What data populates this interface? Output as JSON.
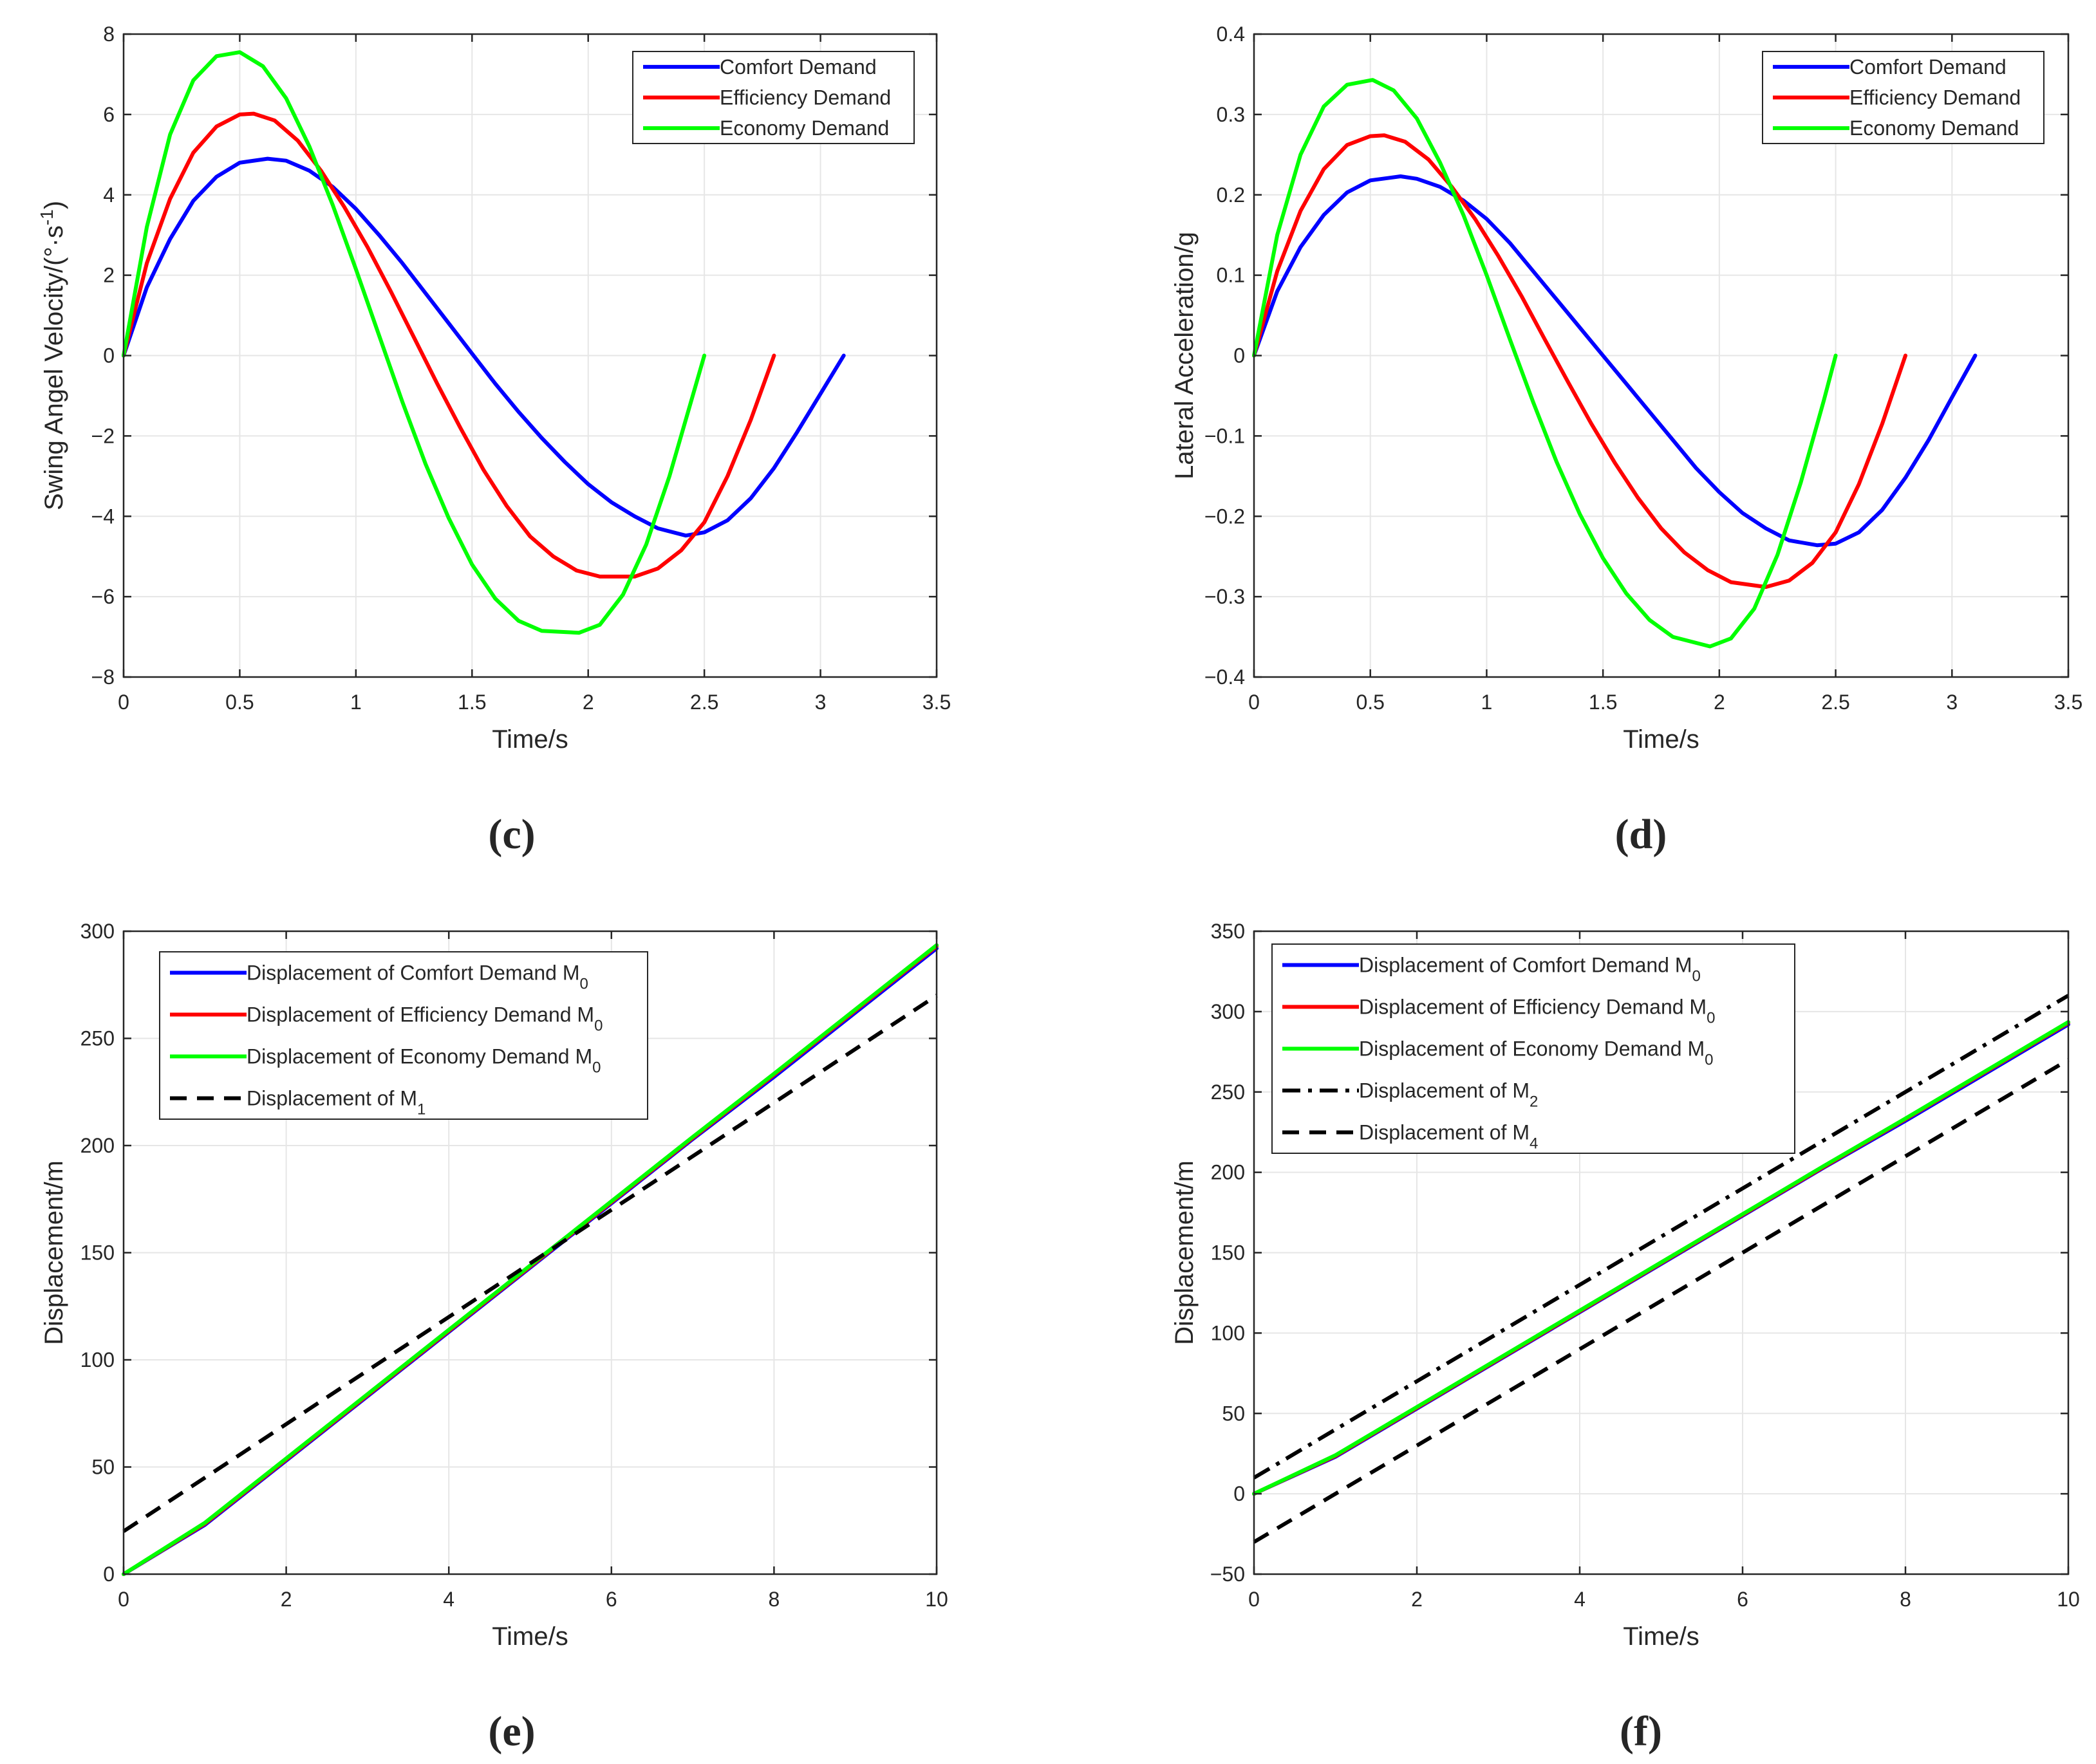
{
  "colors": {
    "comfort": "#0000ff",
    "efficiency": "#ff0000",
    "economy": "#00ff00",
    "reference": "#000000",
    "grid": "#e6e6e6",
    "axis": "#262626"
  },
  "chart_data": [
    {
      "panel": "(c)",
      "type": "line",
      "title": "",
      "xlabel": "Time/s",
      "ylabel": "Swing Angel Velocity/(°·s",
      "ylabel_sup": "-1",
      "ylabel_tail": ")",
      "xlim": [
        0,
        3.5
      ],
      "ylim": [
        -8,
        8
      ],
      "xticks": [
        0,
        0.5,
        1,
        1.5,
        2,
        2.5,
        3,
        3.5
      ],
      "xtick_labels": [
        "0",
        "0.5",
        "1",
        "1.5",
        "2",
        "2.5",
        "3",
        "3.5"
      ],
      "yticks": [
        -8,
        -6,
        -4,
        -2,
        0,
        2,
        4,
        6,
        8
      ],
      "ytick_labels": [
        "−8",
        "−6",
        "−4",
        "−2",
        "0",
        "2",
        "4",
        "6",
        "8"
      ],
      "grid": true,
      "legend_position": "top-right",
      "series": [
        {
          "name": "Comfort Demand",
          "color_key": "comfort",
          "dash": "solid",
          "x": [
            0,
            0.1,
            0.2,
            0.3,
            0.4,
            0.5,
            0.62,
            0.7,
            0.8,
            0.9,
            1.0,
            1.1,
            1.2,
            1.3,
            1.4,
            1.5,
            1.6,
            1.7,
            1.8,
            1.9,
            2.0,
            2.1,
            2.2,
            2.3,
            2.42,
            2.5,
            2.6,
            2.7,
            2.8,
            2.9,
            3.0,
            3.1
          ],
          "y": [
            0,
            1.7,
            2.9,
            3.85,
            4.45,
            4.8,
            4.9,
            4.85,
            4.6,
            4.2,
            3.65,
            3.0,
            2.3,
            1.55,
            0.8,
            0.05,
            -0.7,
            -1.4,
            -2.05,
            -2.65,
            -3.2,
            -3.65,
            -4.0,
            -4.3,
            -4.48,
            -4.4,
            -4.1,
            -3.55,
            -2.8,
            -1.9,
            -0.95,
            0
          ]
        },
        {
          "name": "Efficiency Demand",
          "color_key": "efficiency",
          "dash": "solid",
          "x": [
            0,
            0.1,
            0.2,
            0.3,
            0.4,
            0.5,
            0.56,
            0.65,
            0.75,
            0.85,
            0.95,
            1.05,
            1.15,
            1.25,
            1.35,
            1.45,
            1.55,
            1.65,
            1.75,
            1.85,
            1.95,
            2.05,
            2.2,
            2.3,
            2.4,
            2.5,
            2.6,
            2.7,
            2.8
          ],
          "y": [
            0,
            2.3,
            3.9,
            5.05,
            5.7,
            6.0,
            6.02,
            5.85,
            5.35,
            4.6,
            3.7,
            2.7,
            1.6,
            0.45,
            -0.7,
            -1.8,
            -2.85,
            -3.75,
            -4.5,
            -5.0,
            -5.35,
            -5.5,
            -5.5,
            -5.3,
            -4.85,
            -4.15,
            -3.0,
            -1.6,
            0
          ]
        },
        {
          "name": "Economy Demand",
          "color_key": "economy",
          "dash": "solid",
          "x": [
            0,
            0.1,
            0.2,
            0.3,
            0.4,
            0.5,
            0.6,
            0.7,
            0.8,
            0.9,
            1.0,
            1.1,
            1.2,
            1.3,
            1.4,
            1.5,
            1.6,
            1.7,
            1.8,
            1.96,
            2.05,
            2.15,
            2.25,
            2.35,
            2.45,
            2.5
          ],
          "y": [
            0,
            3.2,
            5.5,
            6.85,
            7.45,
            7.55,
            7.2,
            6.4,
            5.2,
            3.75,
            2.15,
            0.5,
            -1.15,
            -2.7,
            -4.05,
            -5.2,
            -6.05,
            -6.6,
            -6.85,
            -6.9,
            -6.7,
            -5.95,
            -4.7,
            -3.0,
            -1.0,
            0
          ]
        }
      ]
    },
    {
      "panel": "(d)",
      "type": "line",
      "title": "",
      "xlabel": "Time/s",
      "ylabel": "Lateral Acceleration/g",
      "xlim": [
        0,
        3.5
      ],
      "ylim": [
        -0.4,
        0.4
      ],
      "xticks": [
        0,
        0.5,
        1,
        1.5,
        2,
        2.5,
        3,
        3.5
      ],
      "xtick_labels": [
        "0",
        "0.5",
        "1",
        "1.5",
        "2",
        "2.5",
        "3",
        "3.5"
      ],
      "yticks": [
        -0.4,
        -0.3,
        -0.2,
        -0.1,
        0,
        0.1,
        0.2,
        0.3,
        0.4
      ],
      "ytick_labels": [
        "−0.4",
        "−0.3",
        "−0.2",
        "−0.1",
        "0",
        "0.1",
        "0.2",
        "0.3",
        "0.4"
      ],
      "grid": true,
      "legend_position": "top-right",
      "series": [
        {
          "name": "Comfort Demand",
          "color_key": "comfort",
          "dash": "solid",
          "x": [
            0,
            0.1,
            0.2,
            0.3,
            0.4,
            0.5,
            0.63,
            0.7,
            0.8,
            0.9,
            1.0,
            1.1,
            1.2,
            1.3,
            1.4,
            1.5,
            1.6,
            1.7,
            1.8,
            1.9,
            2.0,
            2.1,
            2.2,
            2.3,
            2.42,
            2.5,
            2.6,
            2.7,
            2.8,
            2.9,
            3.0,
            3.1
          ],
          "y": [
            0,
            0.08,
            0.135,
            0.175,
            0.203,
            0.218,
            0.223,
            0.22,
            0.21,
            0.193,
            0.17,
            0.14,
            0.105,
            0.07,
            0.035,
            0.0,
            -0.035,
            -0.07,
            -0.105,
            -0.14,
            -0.17,
            -0.196,
            -0.215,
            -0.23,
            -0.236,
            -0.234,
            -0.22,
            -0.192,
            -0.152,
            -0.105,
            -0.052,
            0
          ]
        },
        {
          "name": "Efficiency Demand",
          "color_key": "efficiency",
          "dash": "solid",
          "x": [
            0,
            0.1,
            0.2,
            0.3,
            0.4,
            0.5,
            0.56,
            0.65,
            0.75,
            0.85,
            0.95,
            1.05,
            1.15,
            1.25,
            1.35,
            1.45,
            1.55,
            1.65,
            1.75,
            1.85,
            1.95,
            2.05,
            2.2,
            2.3,
            2.4,
            2.5,
            2.6,
            2.7,
            2.8
          ],
          "y": [
            0,
            0.105,
            0.18,
            0.232,
            0.262,
            0.273,
            0.274,
            0.266,
            0.244,
            0.21,
            0.17,
            0.124,
            0.074,
            0.02,
            -0.033,
            -0.085,
            -0.133,
            -0.177,
            -0.215,
            -0.245,
            -0.267,
            -0.282,
            -0.288,
            -0.28,
            -0.258,
            -0.22,
            -0.16,
            -0.085,
            0
          ]
        },
        {
          "name": "Economy Demand",
          "color_key": "economy",
          "dash": "solid",
          "x": [
            0,
            0.1,
            0.2,
            0.3,
            0.4,
            0.51,
            0.6,
            0.7,
            0.8,
            0.9,
            1.0,
            1.1,
            1.2,
            1.3,
            1.4,
            1.5,
            1.6,
            1.7,
            1.8,
            1.96,
            2.05,
            2.15,
            2.25,
            2.35,
            2.45,
            2.5
          ],
          "y": [
            0,
            0.15,
            0.25,
            0.31,
            0.337,
            0.343,
            0.33,
            0.295,
            0.24,
            0.175,
            0.1,
            0.02,
            -0.058,
            -0.132,
            -0.197,
            -0.252,
            -0.296,
            -0.329,
            -0.35,
            -0.362,
            -0.352,
            -0.315,
            -0.248,
            -0.158,
            -0.055,
            0
          ]
        }
      ]
    },
    {
      "panel": "(e)",
      "type": "line",
      "title": "",
      "xlabel": "Time/s",
      "ylabel": "Displacement/m",
      "xlim": [
        0,
        10
      ],
      "ylim": [
        0,
        300
      ],
      "xticks": [
        0,
        2,
        4,
        6,
        8,
        10
      ],
      "xtick_labels": [
        "0",
        "2",
        "4",
        "6",
        "8",
        "10"
      ],
      "yticks": [
        0,
        50,
        100,
        150,
        200,
        250,
        300
      ],
      "ytick_labels": [
        "0",
        "50",
        "100",
        "150",
        "200",
        "250",
        "300"
      ],
      "grid": true,
      "legend_position": "top-left",
      "series": [
        {
          "name": "Displacement of Comfort Demand M",
          "sub": "0",
          "color_key": "comfort",
          "dash": "solid",
          "x": [
            0,
            1,
            2,
            3,
            4,
            5,
            6,
            7,
            8,
            10
          ],
          "y": [
            0,
            23,
            53,
            83,
            113,
            143,
            173,
            203,
            232,
            292
          ]
        },
        {
          "name": "Displacement of Efficiency Demand M",
          "sub": "0",
          "color_key": "efficiency",
          "dash": "solid",
          "x": [
            0,
            1,
            2,
            3,
            4,
            5,
            6,
            7,
            8,
            10
          ],
          "y": [
            0,
            23.5,
            53.5,
            83.5,
            113.5,
            143.5,
            173.5,
            203.5,
            233,
            293
          ]
        },
        {
          "name": "Displacement of Economy Demand M",
          "sub": "0",
          "color_key": "economy",
          "dash": "solid",
          "x": [
            0,
            1,
            2,
            3,
            4,
            5,
            6,
            7,
            8,
            10
          ],
          "y": [
            0,
            24,
            54,
            84,
            114,
            144,
            174,
            204,
            233.5,
            293.5
          ]
        },
        {
          "name": "Displacement of M",
          "sub": "1",
          "color_key": "reference",
          "dash": "dashed",
          "x": [
            0,
            10
          ],
          "y": [
            20,
            270
          ]
        }
      ]
    },
    {
      "panel": "(f)",
      "type": "line",
      "title": "",
      "xlabel": "Time/s",
      "ylabel": "Displacement/m",
      "xlim": [
        0,
        10
      ],
      "ylim": [
        -50,
        350
      ],
      "xticks": [
        0,
        2,
        4,
        6,
        8,
        10
      ],
      "xtick_labels": [
        "0",
        "2",
        "4",
        "6",
        "8",
        "10"
      ],
      "yticks": [
        -50,
        0,
        50,
        100,
        150,
        200,
        250,
        300,
        350
      ],
      "ytick_labels": [
        "−50",
        "0",
        "50",
        "100",
        "150",
        "200",
        "250",
        "300",
        "350"
      ],
      "grid": true,
      "legend_position": "top-left",
      "series": [
        {
          "name": "Displacement of Comfort Demand M",
          "sub": "0",
          "color_key": "comfort",
          "dash": "solid",
          "x": [
            0,
            1,
            2,
            3,
            4,
            5,
            6,
            7,
            8,
            10
          ],
          "y": [
            0,
            23,
            53,
            83,
            113,
            143,
            173,
            203,
            232,
            292
          ]
        },
        {
          "name": "Displacement of Efficiency Demand M",
          "sub": "0",
          "color_key": "efficiency",
          "dash": "solid",
          "x": [
            0,
            1,
            2,
            3,
            4,
            5,
            6,
            7,
            8,
            10
          ],
          "y": [
            0,
            23.5,
            53.5,
            83.5,
            113.5,
            143.5,
            173.5,
            203.5,
            233,
            293
          ]
        },
        {
          "name": "Displacement of Economy Demand M",
          "sub": "0",
          "color_key": "economy",
          "dash": "solid",
          "x": [
            0,
            1,
            2,
            3,
            4,
            5,
            6,
            7,
            8,
            10
          ],
          "y": [
            0,
            24,
            54,
            84,
            114,
            144,
            174,
            204,
            233.5,
            293.5
          ]
        },
        {
          "name": "Displacement of M",
          "sub": "2",
          "color_key": "reference",
          "dash": "dashdot",
          "x": [
            0,
            1,
            2,
            10
          ],
          "y": [
            10,
            40,
            70,
            310
          ]
        },
        {
          "name": "Displacement of M",
          "sub": "4",
          "color_key": "reference",
          "dash": "dashed",
          "x": [
            0,
            10
          ],
          "y": [
            -30,
            270
          ]
        }
      ]
    }
  ]
}
